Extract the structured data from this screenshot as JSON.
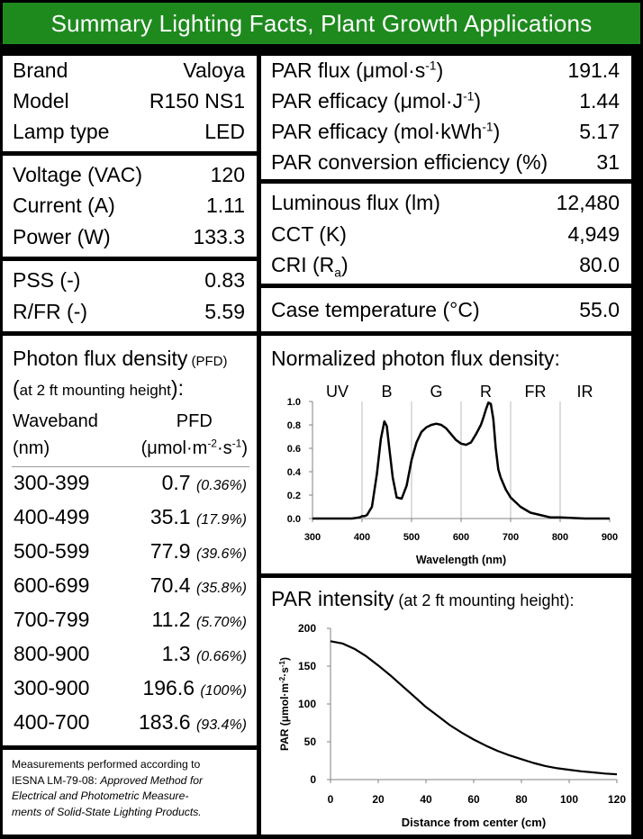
{
  "banner": {
    "title": "Summary Lighting Facts, Plant Growth Applications"
  },
  "identity": {
    "rows": [
      {
        "label": "Brand",
        "value": "Valoya"
      },
      {
        "label": "Model",
        "value": "R150 NS1"
      },
      {
        "label": "Lamp type",
        "value": "LED"
      }
    ]
  },
  "electrical": {
    "rows": [
      {
        "label": "Voltage (VAC)",
        "value": "120"
      },
      {
        "label": "Current (A)",
        "value": "1.11"
      },
      {
        "label": "Power (W)",
        "value": "133.3"
      }
    ]
  },
  "ratios": {
    "rows": [
      {
        "label": "PSS (-)",
        "value": "0.83"
      },
      {
        "label": "R/FR (-)",
        "value": "5.59"
      }
    ]
  },
  "par": {
    "flux_label_pre": "PAR flux (μmol·s",
    "flux_label_sup": "-1",
    "flux_label_post": ")",
    "flux_value": "191.4",
    "eff1_label_pre": "PAR efficacy (μmol·J",
    "eff1_label_sup": "-1",
    "eff1_label_post": ")",
    "eff1_value": "1.44",
    "eff2_label_pre": "PAR efficacy (mol·kWh",
    "eff2_label_sup": "-1",
    "eff2_label_post": ")",
    "eff2_value": "5.17",
    "conv_label": "PAR conversion efficiency (%)",
    "conv_value": "31"
  },
  "photometric": {
    "lum_label": "Luminous flux (lm)",
    "lum_value": "12,480",
    "cct_label": "CCT (K)",
    "cct_value": "4,949",
    "cri_label_pre": "CRI (R",
    "cri_label_sub": "a",
    "cri_label_post": ")",
    "cri_value": "80.0"
  },
  "case": {
    "label": "Case temperature (°C)",
    "value": "55.0"
  },
  "pfd": {
    "title": "Photon flux density",
    "title_small": " (PFD)",
    "subtitle_paren_open": "(",
    "subtitle": "at 2 ft mounting height",
    "subtitle_paren_close": "):",
    "col1_line1": "Waveband",
    "col1_line2": "(nm)",
    "col2_line1": "PFD",
    "col2_line2_pre": "(μmol·m",
    "col2_line2_sup1": "-2",
    "col2_line2_mid": "·s",
    "col2_line2_sup2": "-1",
    "col2_line2_post": ")",
    "rows": [
      {
        "band": "300-399",
        "value": "0.7",
        "pct": "(0.36%)"
      },
      {
        "band": "400-499",
        "value": "35.1",
        "pct": "(17.9%)"
      },
      {
        "band": "500-599",
        "value": "77.9",
        "pct": "(39.6%)"
      },
      {
        "band": "600-699",
        "value": "70.4",
        "pct": "(35.8%)"
      },
      {
        "band": "700-799",
        "value": "11.2",
        "pct": "(5.70%)"
      },
      {
        "band": "800-900",
        "value": "1.3",
        "pct": "(0.66%)"
      },
      {
        "band": "300-900",
        "value": "196.6",
        "pct": "(100%)"
      },
      {
        "band": "400-700",
        "value": "183.6",
        "pct": "(93.4%)"
      }
    ]
  },
  "note": {
    "line1": "Measurements performed according to",
    "line2_plain": "IESNA LM-79-08: ",
    "line2_italic": "Approved Method for",
    "line3_italic": "Electrical and Photometric Measure-",
    "line4_italic": "ments of Solid-State Lighting Products."
  },
  "chart_data": [
    {
      "type": "line",
      "title": "Normalized photon flux density:",
      "xlabel": "Wavelength (nm)",
      "ylabel": "",
      "xlim": [
        300,
        900
      ],
      "ylim": [
        0,
        1.0
      ],
      "xticks": [
        "300",
        "400",
        "500",
        "600",
        "700",
        "800",
        "900"
      ],
      "yticks": [
        "0.0",
        "0.2",
        "0.4",
        "0.6",
        "0.8",
        "1.0"
      ],
      "bands": [
        "UV",
        "B",
        "G",
        "R",
        "FR",
        "IR"
      ],
      "band_centers": [
        350,
        450,
        550,
        650,
        750,
        850
      ],
      "band_dividers": [
        400,
        500,
        600,
        700,
        800
      ],
      "grid": false,
      "series": [
        {
          "x": [
            300,
            380,
            395,
            400,
            405,
            410,
            420,
            430,
            438,
            445,
            450,
            455,
            462,
            470,
            480,
            490,
            500,
            510,
            520,
            530,
            540,
            550,
            560,
            570,
            580,
            590,
            600,
            610,
            620,
            630,
            640,
            645,
            650,
            655,
            660,
            665,
            670,
            675,
            680,
            690,
            700,
            720,
            740,
            760,
            780,
            800,
            850,
            900
          ],
          "y": [
            0.0,
            0.0,
            0.01,
            0.02,
            0.02,
            0.03,
            0.1,
            0.38,
            0.68,
            0.83,
            0.79,
            0.6,
            0.35,
            0.18,
            0.17,
            0.28,
            0.5,
            0.65,
            0.74,
            0.78,
            0.8,
            0.81,
            0.8,
            0.77,
            0.72,
            0.67,
            0.64,
            0.63,
            0.65,
            0.72,
            0.8,
            0.86,
            0.93,
            0.99,
            0.98,
            0.85,
            0.6,
            0.42,
            0.35,
            0.25,
            0.18,
            0.1,
            0.05,
            0.03,
            0.01,
            0.01,
            0.0,
            0.0
          ]
        }
      ]
    },
    {
      "type": "line",
      "title": "PAR intensity",
      "title_small_open": " (",
      "title_small": "at 2 ft mounting height",
      "title_small_close": "):",
      "xlabel": "Distance from center (cm)",
      "ylabel_pre": "PAR (μmol·m",
      "ylabel_sup1": "-2",
      "ylabel_mid": "·s",
      "ylabel_sup2": "-1",
      "ylabel_post": ")",
      "xlim": [
        0,
        120
      ],
      "ylim": [
        0,
        200
      ],
      "xticks": [
        "0",
        "20",
        "40",
        "60",
        "80",
        "100",
        "120"
      ],
      "yticks": [
        "0",
        "50",
        "100",
        "150",
        "200"
      ],
      "grid": false,
      "series": [
        {
          "x": [
            0,
            5,
            10,
            15,
            20,
            25,
            30,
            35,
            40,
            45,
            50,
            55,
            60,
            65,
            70,
            75,
            80,
            85,
            90,
            95,
            100,
            105,
            110,
            115,
            120
          ],
          "y": [
            183,
            180,
            173,
            163,
            151,
            138,
            124,
            110,
            96,
            84,
            72,
            62,
            53,
            45,
            38,
            32,
            27,
            22,
            18,
            15,
            13,
            11,
            9.5,
            8,
            7
          ]
        }
      ]
    }
  ]
}
